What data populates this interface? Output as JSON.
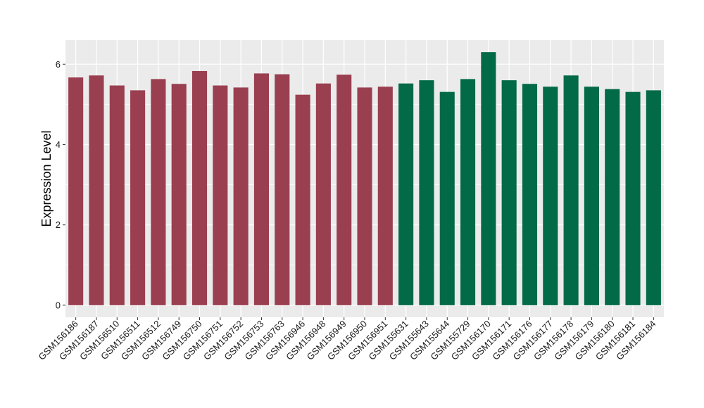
{
  "chart_data": {
    "type": "bar",
    "title": "",
    "xlabel": "",
    "ylabel": "Expression Level",
    "ylim": [
      -0.3,
      6.6
    ],
    "yticks": [
      0,
      2,
      4,
      6
    ],
    "grid": true,
    "legend": "none",
    "categories": [
      "GSM156186",
      "GSM156187",
      "GSM156510",
      "GSM156511",
      "GSM156512",
      "GSM156749",
      "GSM156750",
      "GSM156751",
      "GSM156752",
      "GSM156753",
      "GSM156763",
      "GSM156946",
      "GSM156948",
      "GSM156949",
      "GSM156950",
      "GSM156951",
      "GSM155631",
      "GSM155643",
      "GSM155644",
      "GSM155729",
      "GSM156170",
      "GSM156171",
      "GSM156176",
      "GSM156177",
      "GSM156178",
      "GSM156179",
      "GSM156180",
      "GSM156181",
      "GSM156184"
    ],
    "values": [
      5.67,
      5.72,
      5.47,
      5.35,
      5.63,
      5.51,
      5.83,
      5.47,
      5.42,
      5.77,
      5.75,
      5.24,
      5.52,
      5.74,
      5.42,
      5.44,
      5.52,
      5.6,
      5.31,
      5.63,
      6.3,
      5.6,
      5.51,
      5.44,
      5.72,
      5.44,
      5.38,
      5.31,
      5.35
    ],
    "groups": [
      0,
      0,
      0,
      0,
      0,
      0,
      0,
      0,
      0,
      0,
      0,
      0,
      0,
      0,
      0,
      0,
      1,
      1,
      1,
      1,
      1,
      1,
      1,
      1,
      1,
      1,
      1,
      1,
      1
    ],
    "colors": {
      "group_1": "#9a3f50",
      "group_2": "#036a47",
      "panel_bg": "#ebebeb",
      "grid": "#ffffff"
    }
  }
}
